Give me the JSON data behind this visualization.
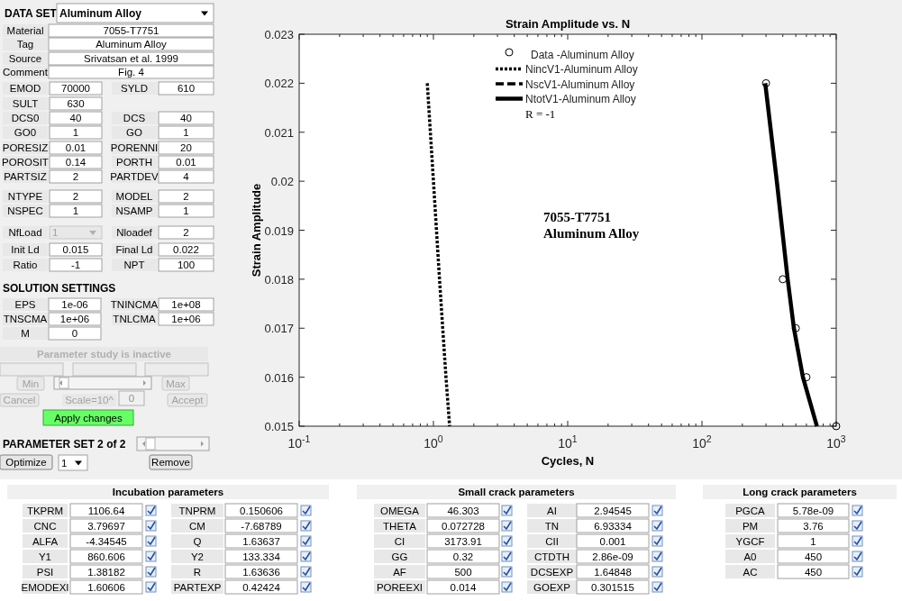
{
  "chart_data": [
    {
      "type": "line",
      "title": "Strain Amplitude vs. N",
      "xlabel": "Cycles, N",
      "ylabel": "Strain Amplitude",
      "log": "x",
      "grid": false,
      "legend": "top",
      "xlim": [
        0.1,
        1000
      ],
      "ylim": [
        0.015,
        0.023
      ],
      "xticks": [
        {
          "value": 0.1,
          "label": "10$^{-1}$"
        },
        {
          "value": 0.2,
          "label": null
        },
        {
          "value": 0.3,
          "label": null
        },
        {
          "value": 0.4,
          "label": null
        },
        {
          "value": 0.5,
          "label": null
        },
        {
          "value": 0.6,
          "label": null
        },
        {
          "value": 0.7,
          "label": null
        },
        {
          "value": 0.8,
          "label": null
        },
        {
          "value": 0.9,
          "label": null
        },
        {
          "value": 1,
          "label": "10$^{0}$"
        },
        {
          "value": 2,
          "label": null
        },
        {
          "value": 3,
          "label": null
        },
        {
          "value": 4,
          "label": null
        },
        {
          "value": 5,
          "label": null
        },
        {
          "value": 6,
          "label": null
        },
        {
          "value": 7,
          "label": null
        },
        {
          "value": 8,
          "label": null
        },
        {
          "value": 9,
          "label": null
        },
        {
          "value": 10,
          "label": "10$^{1}$"
        },
        {
          "value": 20,
          "label": null
        },
        {
          "value": 30,
          "label": null
        },
        {
          "value": 40,
          "label": null
        },
        {
          "value": 50,
          "label": null
        },
        {
          "value": 60,
          "label": null
        },
        {
          "value": 70,
          "label": null
        },
        {
          "value": 80,
          "label": null
        },
        {
          "value": 90,
          "label": null
        },
        {
          "value": 100,
          "label": "10$^{2}$"
        },
        {
          "value": 200,
          "label": null
        },
        {
          "value": 300,
          "label": null
        },
        {
          "value": 400,
          "label": null
        },
        {
          "value": 500,
          "label": null
        },
        {
          "value": 600,
          "label": null
        },
        {
          "value": 700,
          "label": null
        },
        {
          "value": 800,
          "label": null
        },
        {
          "value": 900,
          "label": null
        },
        {
          "value": 1000,
          "label": "10$^{3}$"
        }
      ],
      "yticks": [
        0.015,
        0.016,
        0.017,
        0.018,
        0.019,
        0.02,
        0.021,
        0.022,
        0.023
      ],
      "annotations": [
        "R = -1",
        "7055-T7751",
        "Aluminum Alloy"
      ],
      "series": [
        {
          "name": "Data -Aluminum Alloy",
          "type": "scatter",
          "marker": "circle",
          "color": "#000000",
          "x": [
            300,
            400,
            500,
            600,
            1000
          ],
          "values": [
            0.022,
            0.018,
            0.017,
            0.016,
            0.015
          ]
        },
        {
          "name": "NincV1-Aluminum Alloy",
          "type": "line",
          "line_style": "dotted",
          "color": "#000000",
          "x": [
            0.9,
            1.0,
            1.11,
            1.24,
            1.32
          ],
          "values": [
            0.022,
            0.02,
            0.018,
            0.016,
            0.015
          ]
        },
        {
          "name": "NscV1-Aluminum Alloy",
          "type": "line",
          "line_style": "dashed",
          "color": "#000000"
        },
        {
          "name": "NtotV1-Aluminum Alloy",
          "type": "line",
          "line_style": "solid",
          "color": "#000000",
          "x": [
            296,
            361,
            435,
            484,
            565,
            718
          ],
          "values": [
            0.022,
            0.02,
            0.018,
            0.017,
            0.016,
            0.015
          ]
        }
      ]
    },
    {
      "type": "other",
      "annotations": [
        "DATA SET",
        "Aluminum Alloy",
        "Material",
        "7055-T7751",
        "Tag",
        "Aluminum Alloy",
        "Source",
        "Srivatsan et al. 1999",
        "Comment",
        "Fig. 4",
        "EMOD",
        "70000",
        "SYLD",
        "610",
        "SULT",
        "630",
        "DCS0",
        "40",
        "DCS",
        "40",
        "GO0",
        "1",
        "GO",
        "1",
        "PORESIZ",
        "0.01",
        "PORENNI",
        "20",
        "POROSIT",
        "0.14",
        "PORTH",
        "0.01",
        "PARTSIZ",
        "2",
        "PARTDEV",
        "4",
        "NTYPE",
        "2",
        "MODEL",
        "2",
        "NSPEC",
        "1",
        "NSAMP",
        "1",
        "NfLoad",
        "1",
        "Nloadef",
        "2",
        "Init Ld",
        "0.015",
        "Final Ld",
        "0.022",
        "Ratio",
        "-1",
        "NPT",
        "100",
        "SOLUTION SETTINGS",
        "EPS",
        "1e-06",
        "TNINCMA",
        "1e+08",
        "TNSCMA",
        "1e+06",
        "TNLCMA",
        "1e+06",
        "M",
        "0",
        "Parameter study is inactive",
        "Min",
        "Max",
        "Cancel",
        "Scale=10^",
        "0",
        "Accept",
        "Apply changes",
        "PARAMETER SET 2 of 2",
        "Optimize",
        "1",
        "Remove"
      ]
    },
    {
      "type": "other",
      "title": "Incubation parameters",
      "annotations": [
        "TKPRM",
        "1106.64",
        "CNC",
        "3.79697",
        "ALFA",
        "-4.34545",
        "Y1",
        "860.606",
        "PSI",
        "1.38182",
        "EMODEXI",
        "1.60606",
        "TNPRM",
        "0.150606",
        "CM",
        "-7.68789",
        "Q",
        "1.63637",
        "Y2",
        "133.334",
        "R",
        "1.63636",
        "PARTEXP",
        "0.42424"
      ]
    },
    {
      "type": "other",
      "title": "Small crack parameters",
      "annotations": [
        "OMEGA",
        "46.303",
        "THETA",
        "0.072728",
        "CI",
        "3173.91",
        "GG",
        "0.32",
        "AF",
        "500",
        "POREEXI",
        "0.014",
        "AI",
        "2.94545",
        "TN",
        "6.93334",
        "CII",
        "0.001",
        "CTDTH",
        "2.86e-09",
        "DCSEXP",
        "1.64848",
        "GOEXP",
        "0.301515"
      ]
    },
    {
      "type": "other",
      "title": "Long crack parameters",
      "annotations": [
        "PGCA",
        "5.78e-09",
        "PM",
        "3.76",
        "YGCF",
        "1",
        "A0",
        "450",
        "AC",
        "450"
      ]
    }
  ]
}
